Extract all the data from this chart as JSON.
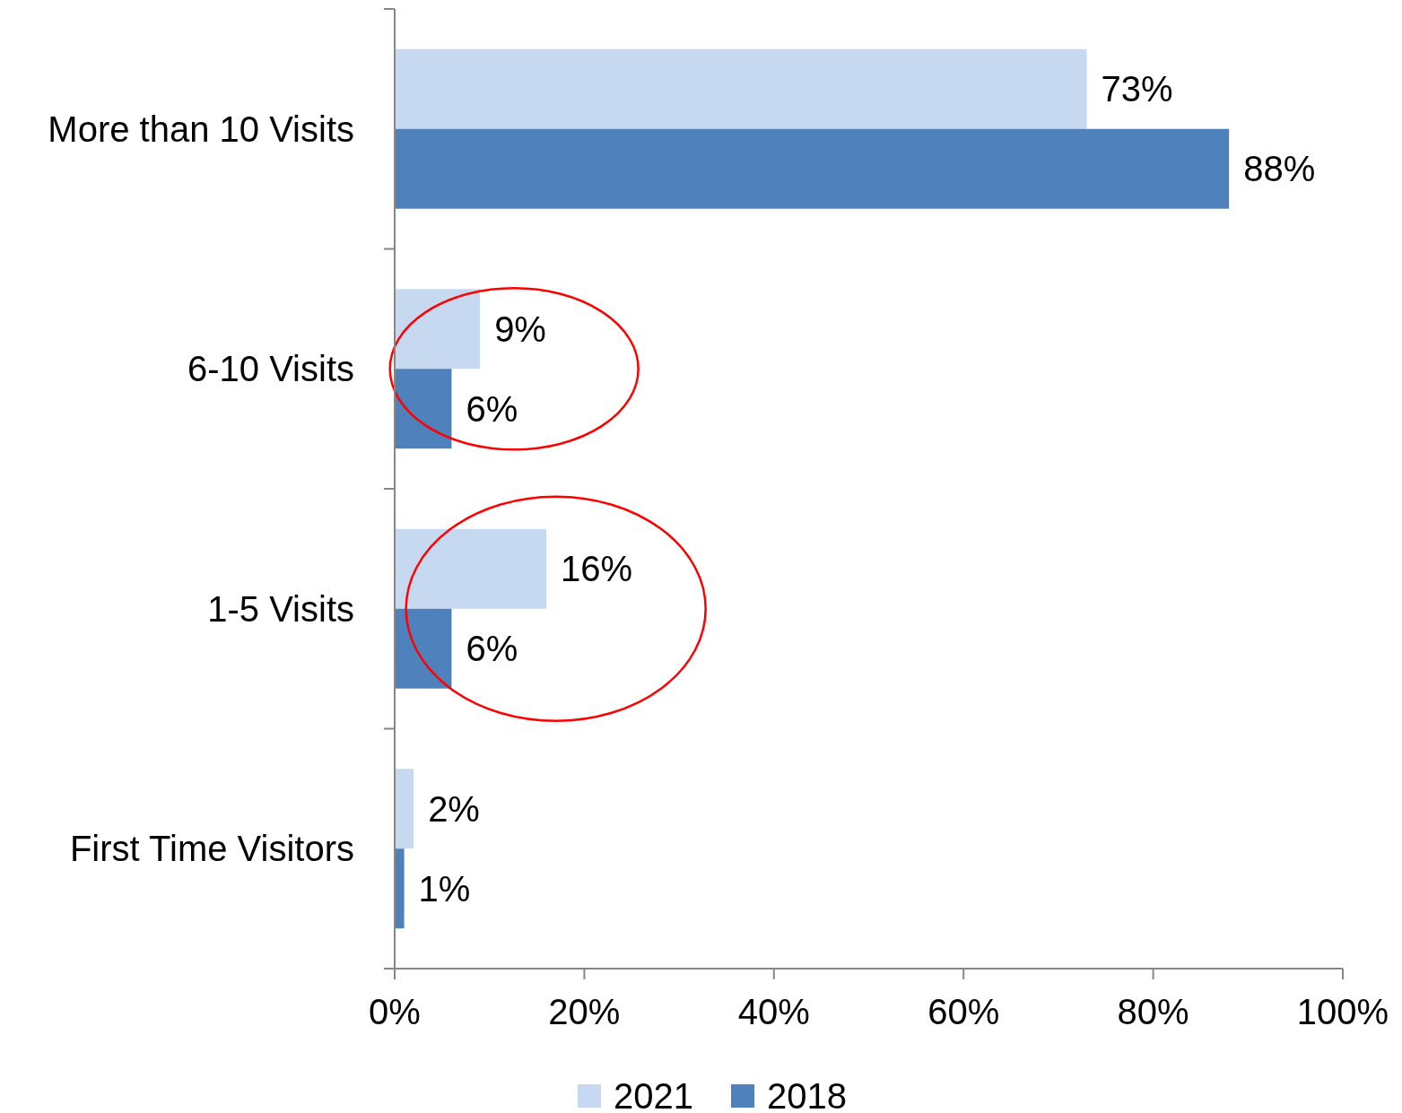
{
  "chart_data": {
    "type": "bar",
    "orientation": "horizontal",
    "categories": [
      "More than 10 Visits",
      "6-10 Visits",
      "1-5 Visits",
      "First Time Visitors"
    ],
    "series": [
      {
        "name": "2021",
        "color": "#c6d9f1",
        "values": [
          73,
          9,
          16,
          2
        ],
        "value_labels": [
          "73%",
          "9%",
          "16%",
          "2%"
        ]
      },
      {
        "name": "2018",
        "color": "#4f81bd",
        "values": [
          88,
          6,
          6,
          1
        ],
        "value_labels": [
          "88%",
          "6%",
          "6%",
          "1%"
        ]
      }
    ],
    "xlim": [
      0,
      100
    ],
    "xticks": [
      {
        "value": 0,
        "label": "0%"
      },
      {
        "value": 20,
        "label": "20%"
      },
      {
        "value": 40,
        "label": "40%"
      },
      {
        "value": 60,
        "label": "60%"
      },
      {
        "value": 80,
        "label": "80%"
      },
      {
        "value": 100,
        "label": "100%"
      }
    ],
    "grid": false,
    "legend": "bottom"
  }
}
